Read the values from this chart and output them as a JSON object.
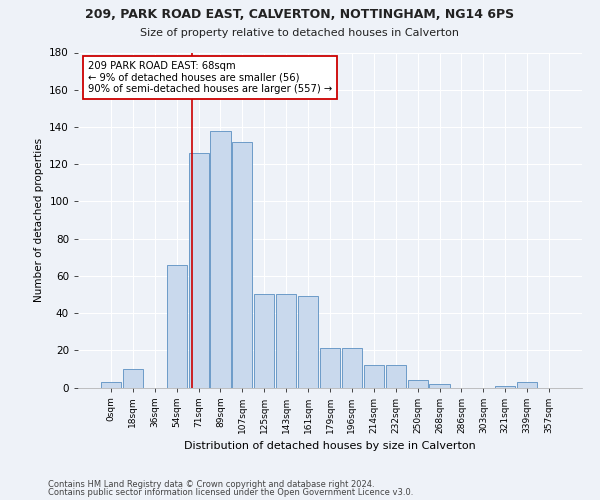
{
  "title1": "209, PARK ROAD EAST, CALVERTON, NOTTINGHAM, NG14 6PS",
  "title2": "Size of property relative to detached houses in Calverton",
  "xlabel": "Distribution of detached houses by size in Calverton",
  "ylabel": "Number of detached properties",
  "bin_labels": [
    "0sqm",
    "18sqm",
    "36sqm",
    "54sqm",
    "71sqm",
    "89sqm",
    "107sqm",
    "125sqm",
    "143sqm",
    "161sqm",
    "179sqm",
    "196sqm",
    "214sqm",
    "232sqm",
    "250sqm",
    "268sqm",
    "286sqm",
    "303sqm",
    "321sqm",
    "339sqm",
    "357sqm"
  ],
  "bar_heights": [
    3,
    10,
    0,
    66,
    126,
    138,
    132,
    50,
    50,
    49,
    21,
    21,
    12,
    12,
    4,
    2,
    0,
    0,
    1,
    3,
    0
  ],
  "bar_color": "#c9d9ed",
  "bar_edge_color": "#5a8fc2",
  "vline_x": 3.72,
  "vline_color": "#cc0000",
  "annotation_text": "209 PARK ROAD EAST: 68sqm\n← 9% of detached houses are smaller (56)\n90% of semi-detached houses are larger (557) →",
  "annotation_box_color": "white",
  "annotation_box_edge": "#cc0000",
  "ylim": [
    0,
    180
  ],
  "yticks": [
    0,
    20,
    40,
    60,
    80,
    100,
    120,
    140,
    160,
    180
  ],
  "footer1": "Contains HM Land Registry data © Crown copyright and database right 2024.",
  "footer2": "Contains public sector information licensed under the Open Government Licence v3.0.",
  "bg_color": "#eef2f8",
  "plot_bg_color": "#eef2f8"
}
